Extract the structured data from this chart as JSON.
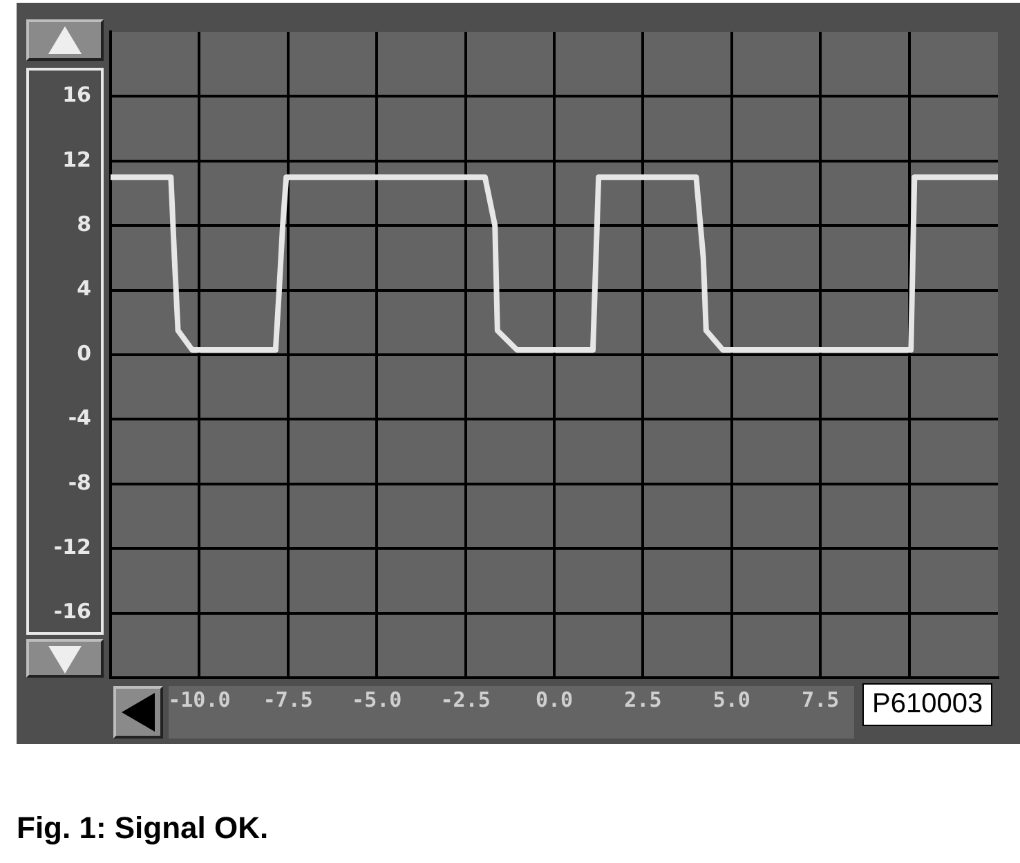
{
  "chart_data": {
    "type": "line",
    "title": "Fig. 1: Signal OK.",
    "annotations": [
      "P610003"
    ],
    "x": [
      -12.5,
      -10.8,
      -10.7,
      -10.6,
      -10.2,
      -7.85,
      -7.75,
      -7.65,
      -7.55,
      -1.95,
      -1.67,
      -1.6,
      -1.05,
      1.09,
      1.25,
      4.0,
      4.2,
      4.28,
      4.75,
      10.05,
      10.15,
      12.5
    ],
    "series": [
      {
        "color": "#e6e6e6",
        "values": [
          11,
          11,
          6,
          1.5,
          0.3,
          0.3,
          4,
          8,
          11,
          11,
          8,
          1.5,
          0.3,
          0.3,
          11,
          11,
          6,
          1.5,
          0.3,
          0.3,
          11,
          11
        ]
      }
    ],
    "xlim": [
      -12.5,
      12.5
    ],
    "xticks": [
      {
        "value": -10,
        "label": "-10.0"
      },
      -7.5,
      {
        "value": -5,
        "label": "-5.0"
      },
      -2.5,
      {
        "value": 0,
        "label": "0.0"
      },
      2.5,
      {
        "value": 5,
        "label": "5.0"
      },
      7.5,
      {
        "value": 10,
        "label": null
      }
    ],
    "ylim": [
      -20,
      20
    ],
    "yticks": [
      -16,
      -12,
      -8,
      -4,
      0,
      4,
      8,
      12,
      16
    ],
    "grid": true,
    "legend": false,
    "marker": "none",
    "line_style": "solid"
  }
}
